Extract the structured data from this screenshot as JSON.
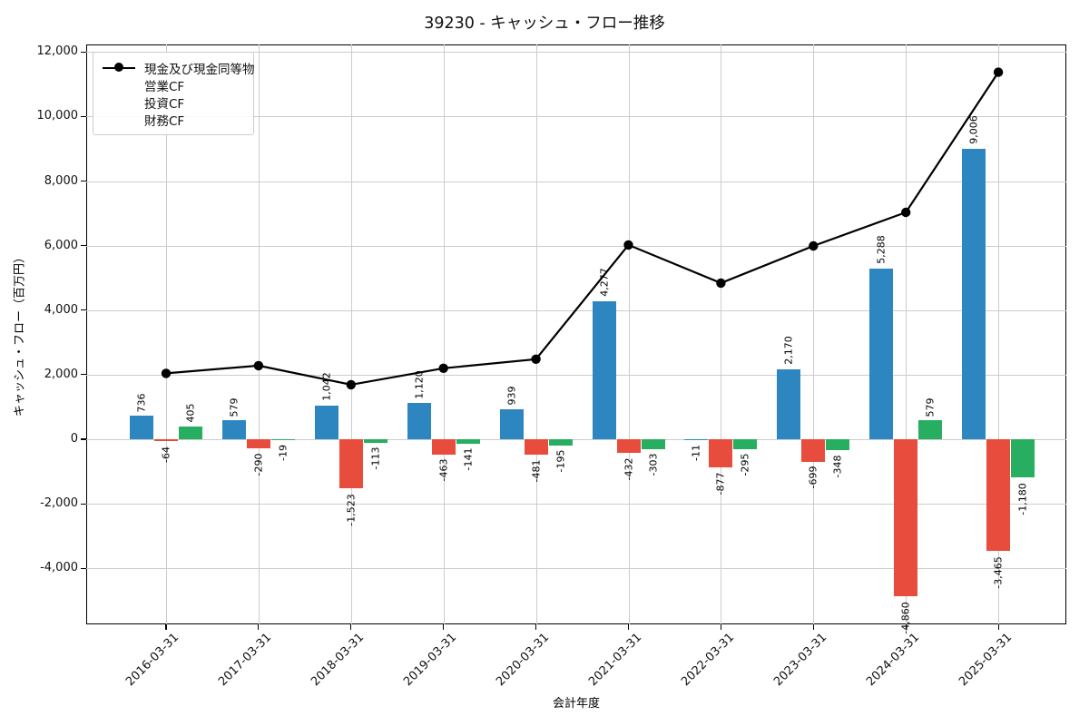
{
  "title": "39230 - キャッシュ・フロー推移",
  "chart_data": {
    "type": "bar+line combo",
    "title": "39230 - キャッシュ・フロー推移",
    "xlabel": "会計年度",
    "ylabel": "キャッシュ・フロー（百万円）",
    "categories": [
      "2016-03-31",
      "2017-03-31",
      "2018-03-31",
      "2019-03-31",
      "2020-03-31",
      "2021-03-31",
      "2022-03-31",
      "2023-03-31",
      "2024-03-31",
      "2025-03-31"
    ],
    "series": [
      {
        "key": "cash-equivalents",
        "name": "現金及び現金同等物",
        "type": "line",
        "color": "#000000",
        "marker": "circle",
        "values": [
          2040,
          2280,
          1690,
          2200,
          2480,
          6020,
          4840,
          5990,
          7030,
          11370
        ]
      },
      {
        "key": "operating-cf",
        "name": "営業CF",
        "type": "bar",
        "color": "#2e86c1",
        "values": [
          736,
          579,
          1042,
          1120,
          939,
          4277,
          -11,
          2170,
          5288,
          9006
        ]
      },
      {
        "key": "investing-cf",
        "name": "投資CF",
        "type": "bar",
        "color": "#e74c3c",
        "values": [
          -64,
          -290,
          -1523,
          -463,
          -481,
          -432,
          -877,
          -699,
          -4860,
          -3465
        ]
      },
      {
        "key": "financing-cf",
        "name": "財務CF",
        "type": "bar",
        "color": "#27ae60",
        "values": [
          405,
          -19,
          -113,
          -141,
          -195,
          -303,
          -295,
          -348,
          579,
          -1180
        ]
      }
    ],
    "y_ticks": [
      12000,
      10000,
      8000,
      6000,
      4000,
      2000,
      0,
      -2000,
      -4000
    ],
    "y_tick_labels": [
      "12,000",
      "10,000",
      "8,000",
      "6,000",
      "4,000",
      "2,000",
      "0",
      "-2,000",
      "-4,000"
    ],
    "ylim": [
      -5735,
      12230
    ],
    "grid": true,
    "legend_position": "upper left",
    "bar_value_labels": true,
    "colors": {
      "grid": "#cccccc",
      "spine": "#000000",
      "background": "#ffffff",
      "text": "#000000"
    }
  }
}
